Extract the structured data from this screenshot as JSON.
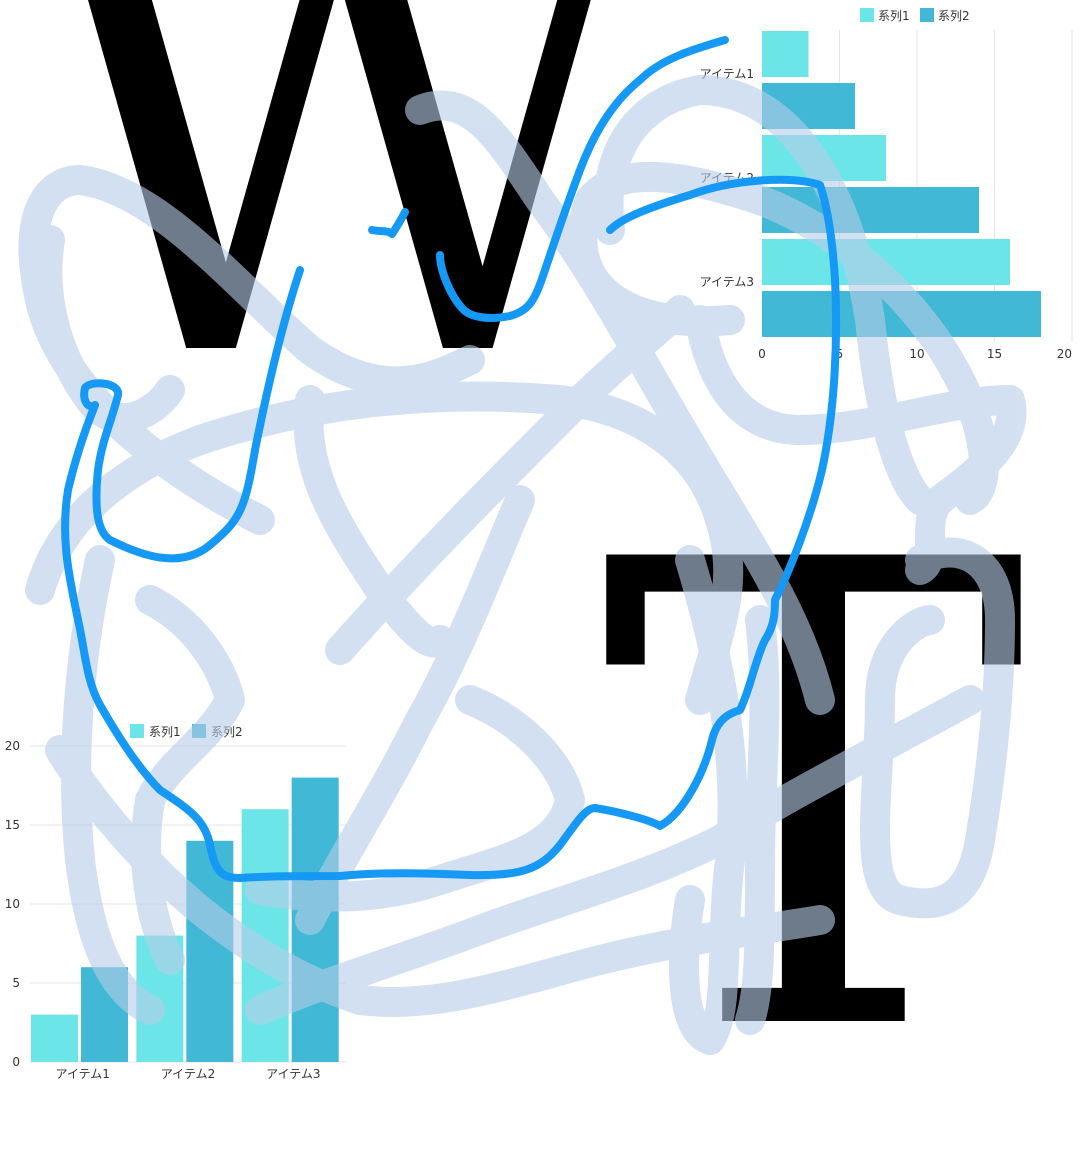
{
  "decor": {
    "letter_w": "W",
    "letter_t": "T",
    "scribble_color": "#b7cde8",
    "line_color": "#1599f5"
  },
  "colors": {
    "series1": "#6ce5e8",
    "series2": "#41b8d5",
    "grid": "#e6e6e6"
  },
  "chart_data": [
    {
      "type": "bar",
      "orientation": "horizontal",
      "categories": [
        "アイテム1",
        "アイテム2",
        "アイテム3"
      ],
      "series": [
        {
          "name": "系列1",
          "values": [
            3,
            8,
            16
          ]
        },
        {
          "name": "系列2",
          "values": [
            6,
            14,
            18
          ]
        }
      ],
      "xlim": [
        0,
        20
      ],
      "x_ticks": [
        0,
        5,
        10,
        15,
        20
      ],
      "legend_position": "top",
      "grid": true
    },
    {
      "type": "bar",
      "orientation": "vertical",
      "categories": [
        "アイテム1",
        "アイテム2",
        "アイテム3"
      ],
      "series": [
        {
          "name": "系列1",
          "values": [
            3,
            8,
            16
          ]
        },
        {
          "name": "系列2",
          "values": [
            6,
            14,
            18
          ]
        }
      ],
      "ylim": [
        0,
        20
      ],
      "y_ticks": [
        0,
        5,
        10,
        15,
        20
      ],
      "legend_position": "top",
      "grid": true
    }
  ]
}
